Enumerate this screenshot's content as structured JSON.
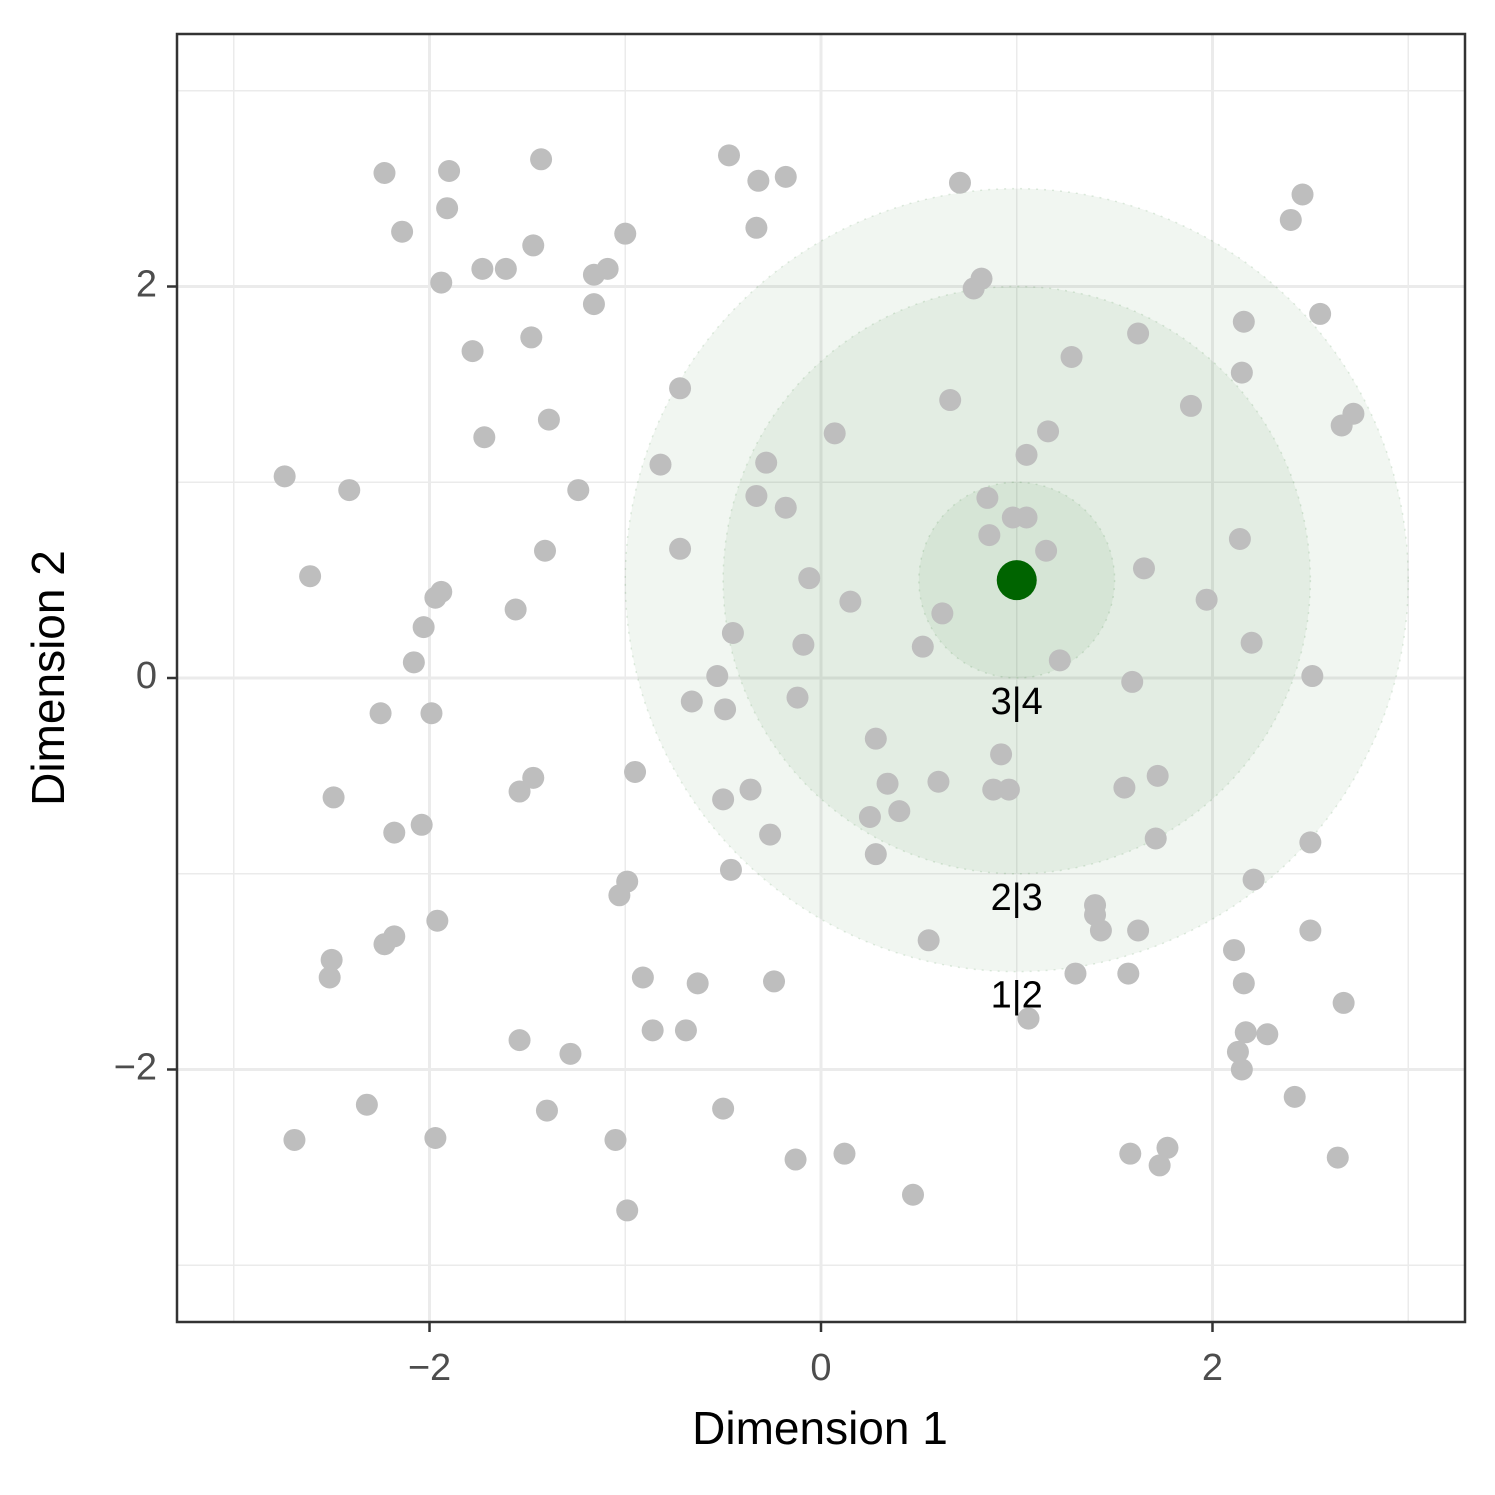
{
  "chart_data": {
    "type": "scatter",
    "xlabel": "Dimension 1",
    "ylabel": "Dimension 2",
    "xlim": [
      -3.29,
      3.29
    ],
    "ylim": [
      -3.29,
      3.29
    ],
    "xticks": [
      {
        "value": -2,
        "label": "−2"
      },
      0,
      2
    ],
    "yticks": [
      {
        "value": -2,
        "label": "−2"
      },
      0,
      2
    ],
    "minor_ticks": [
      -3,
      -1,
      1,
      3
    ],
    "grid": true,
    "color": "#bebebe",
    "x": [
      -2.23,
      -1.9,
      -1.43,
      -0.47,
      -0.32,
      -0.18,
      0.71,
      2.46,
      2.4,
      -2.14,
      -1.91,
      -1.47,
      -1.0,
      -0.33,
      -1.73,
      -1.61,
      -1.16,
      -1.09,
      -1.94,
      -1.16,
      0.78,
      0.82,
      2.55,
      2.16,
      1.62,
      -1.78,
      -1.48,
      1.28,
      2.15,
      -0.72,
      0.66,
      1.89,
      2.72,
      2.66,
      -1.39,
      -1.72,
      0.07,
      1.16,
      1.05,
      -2.74,
      -2.41,
      -1.24,
      -0.82,
      -0.28,
      -0.33,
      -0.18,
      0.85,
      0.98,
      1.05,
      0.86,
      2.14,
      -2.61,
      -1.41,
      -0.72,
      1.15,
      1.65,
      -0.06,
      -1.94,
      -1.97,
      -1.56,
      0.15,
      1.97,
      0.62,
      -2.03,
      -0.45,
      -0.09,
      0.52,
      2.2,
      -2.08,
      1.22,
      -0.53,
      2.51,
      1.59,
      -0.66,
      -0.49,
      -0.12,
      -2.25,
      -1.99,
      0.28,
      0.92,
      -2.49,
      -1.47,
      -1.54,
      -0.95,
      -0.5,
      -0.36,
      0.34,
      0.6,
      1.72,
      1.55,
      0.88,
      0.96,
      -2.18,
      -2.04,
      -0.26,
      0.25,
      0.4,
      1.71,
      2.5,
      0.28,
      -0.46,
      -0.99,
      -1.03,
      2.21,
      1.4,
      1.4,
      -1.96,
      1.43,
      1.62,
      2.5,
      -2.18,
      -2.23,
      0.55,
      -2.5,
      -2.51,
      -0.91,
      -0.63,
      -0.24,
      1.3,
      1.57,
      2.11,
      2.16,
      2.67,
      1.06,
      -0.86,
      -0.69,
      -1.54,
      -1.28,
      2.17,
      2.28,
      2.13,
      2.15,
      -2.32,
      -1.4,
      -0.5,
      2.42,
      -2.69,
      -1.97,
      -1.05,
      1.77,
      1.58,
      1.73,
      2.64,
      -0.13,
      0.12,
      0.47,
      -0.99
    ],
    "y": [
      2.58,
      2.59,
      2.65,
      2.67,
      2.54,
      2.56,
      2.53,
      2.47,
      2.34,
      2.28,
      2.4,
      2.21,
      2.27,
      2.3,
      2.09,
      2.09,
      2.06,
      2.09,
      2.02,
      1.91,
      1.99,
      2.04,
      1.86,
      1.82,
      1.76,
      1.67,
      1.74,
      1.64,
      1.56,
      1.48,
      1.42,
      1.39,
      1.35,
      1.29,
      1.32,
      1.23,
      1.25,
      1.26,
      1.14,
      1.03,
      0.96,
      0.96,
      1.09,
      1.1,
      0.93,
      0.87,
      0.92,
      0.82,
      0.82,
      0.73,
      0.71,
      0.52,
      0.65,
      0.66,
      0.65,
      0.56,
      0.51,
      0.44,
      0.41,
      0.35,
      0.39,
      0.4,
      0.33,
      0.26,
      0.23,
      0.17,
      0.16,
      0.18,
      0.08,
      0.09,
      0.01,
      0.01,
      -0.02,
      -0.12,
      -0.16,
      -0.1,
      -0.18,
      -0.18,
      -0.31,
      -0.39,
      -0.61,
      -0.51,
      -0.58,
      -0.48,
      -0.62,
      -0.57,
      -0.54,
      -0.53,
      -0.5,
      -0.56,
      -0.57,
      -0.57,
      -0.79,
      -0.75,
      -0.8,
      -0.71,
      -0.68,
      -0.82,
      -0.84,
      -0.9,
      -0.98,
      -1.04,
      -1.11,
      -1.03,
      -1.16,
      -1.21,
      -1.24,
      -1.29,
      -1.29,
      -1.29,
      -1.32,
      -1.36,
      -1.34,
      -1.44,
      -1.53,
      -1.53,
      -1.56,
      -1.55,
      -1.51,
      -1.51,
      -1.39,
      -1.56,
      -1.66,
      -1.74,
      -1.8,
      -1.8,
      -1.85,
      -1.92,
      -1.81,
      -1.82,
      -1.91,
      -2.0,
      -2.18,
      -2.21,
      -2.2,
      -2.14,
      -2.36,
      -2.35,
      -2.36,
      -2.4,
      -2.43,
      -2.49,
      -2.45,
      -2.46,
      -2.43,
      -2.64,
      -2.72
    ],
    "ideal_point": {
      "x": 1,
      "y": 0.5,
      "color": "#006400"
    },
    "regions": [
      {
        "label": "1|2",
        "radius": 2
      },
      {
        "label": "2|3",
        "radius": 1.5
      },
      {
        "label": "3|4",
        "radius": 0.5
      }
    ]
  }
}
